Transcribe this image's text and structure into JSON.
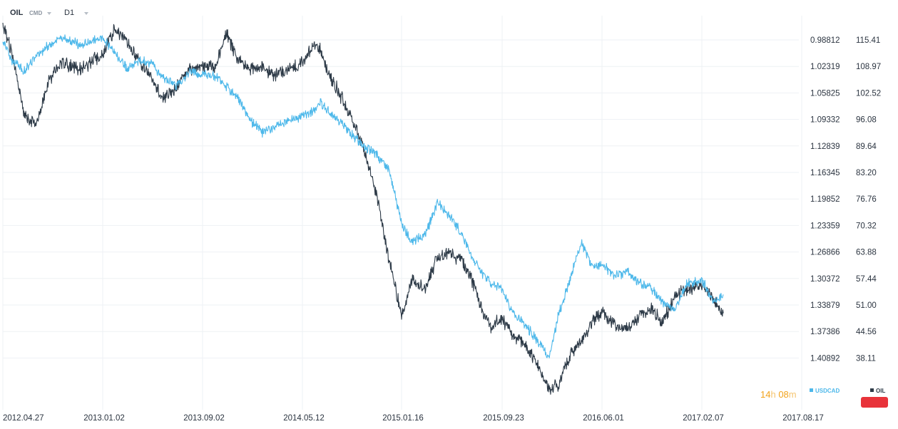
{
  "header": {
    "symbol": "OIL",
    "symbol_type": "CMD",
    "timeframe": "D1"
  },
  "countdown": {
    "hours": "14",
    "hours_unit": "h",
    "minutes": "08",
    "minutes_unit": "m"
  },
  "colors": {
    "oil": "#2d3a47",
    "usdcad": "#4db8ea",
    "grid": "#eceff2",
    "countdown": "#f2a31c",
    "flag": "#e8333a"
  },
  "chart_data": {
    "type": "line",
    "x_ticks": [
      "2012.04.27",
      "2013.01.02",
      "2013.09.02",
      "2014.05.12",
      "2015.01.16",
      "2015.09.23",
      "2016.06.01",
      "2017.02.07",
      "2017.08.17"
    ],
    "y_left_ticks": [
      "0.98812",
      "1.02319",
      "1.05825",
      "1.09332",
      "1.12839",
      "1.16345",
      "1.19852",
      "1.23359",
      "1.26866",
      "1.30372",
      "1.33879",
      "1.37386",
      "1.40892"
    ],
    "y_left_scale": "inverted",
    "y_right_ticks": [
      "115.41",
      "108.97",
      "102.52",
      "96.08",
      "89.64",
      "83.20",
      "76.76",
      "70.32",
      "63.88",
      "57.44",
      "51.00",
      "44.56",
      "38.11"
    ],
    "grid": true,
    "legend": [
      "USDCAD",
      "OIL"
    ],
    "series": [
      {
        "name": "OIL",
        "axis": "right",
        "x": [
          "2012.04.27",
          "2012.05.20",
          "2012.06.20",
          "2012.07.20",
          "2012.08.20",
          "2012.09.15",
          "2012.10.15",
          "2012.11.15",
          "2013.01.02",
          "2013.02.01",
          "2013.03.01",
          "2013.04.01",
          "2013.05.01",
          "2013.06.01",
          "2013.07.01",
          "2013.08.01",
          "2013.09.02",
          "2013.10.01",
          "2013.11.01",
          "2013.12.01",
          "2014.01.01",
          "2014.02.01",
          "2014.03.01",
          "2014.04.01",
          "2014.05.12",
          "2014.06.10",
          "2014.06.25",
          "2014.07.20",
          "2014.08.15",
          "2014.09.15",
          "2014.10.15",
          "2014.11.15",
          "2014.12.15",
          "2015.01.16",
          "2015.02.10",
          "2015.03.16",
          "2015.04.15",
          "2015.05.15",
          "2015.06.15",
          "2015.07.15",
          "2015.08.10",
          "2015.08.25",
          "2015.09.23",
          "2015.10.20",
          "2015.11.20",
          "2015.12.20",
          "2016.01.20",
          "2016.02.11",
          "2016.03.10",
          "2016.04.10",
          "2016.05.10",
          "2016.06.01",
          "2016.07.05",
          "2016.08.03",
          "2016.09.01",
          "2016.10.01",
          "2016.11.01",
          "2016.12.01",
          "2017.01.01",
          "2017.02.07",
          "2017.03.01",
          "2017.03.20"
        ],
        "values": [
          119.5,
          112.0,
          97.0,
          95.0,
          105.0,
          110.0,
          109.0,
          108.5,
          112.0,
          118.0,
          115.0,
          110.0,
          106.0,
          101.0,
          104.0,
          108.5,
          109.0,
          108.5,
          117.0,
          110.5,
          108.0,
          109.0,
          107.0,
          108.0,
          110.0,
          114.0,
          113.0,
          106.5,
          102.0,
          96.0,
          88.0,
          78.0,
          62.0,
          48.5,
          57.0,
          55.0,
          62.5,
          63.5,
          62.0,
          56.0,
          48.5,
          46.0,
          47.5,
          43.5,
          41.5,
          36.5,
          30.5,
          31.5,
          38.5,
          42.0,
          47.5,
          49.5,
          46.0,
          45.0,
          48.0,
          50.0,
          47.0,
          53.0,
          55.0,
          56.0,
          52.0,
          49.0
        ]
      },
      {
        "name": "USDCAD",
        "axis": "left",
        "x": [
          "2012.04.27",
          "2012.05.20",
          "2012.06.20",
          "2012.07.20",
          "2012.08.20",
          "2012.09.15",
          "2012.10.15",
          "2012.11.15",
          "2013.01.02",
          "2013.02.01",
          "2013.03.01",
          "2013.04.01",
          "2013.05.01",
          "2013.06.01",
          "2013.07.01",
          "2013.08.01",
          "2013.09.02",
          "2013.10.01",
          "2013.11.01",
          "2013.12.01",
          "2014.01.01",
          "2014.02.01",
          "2014.03.01",
          "2014.04.01",
          "2014.05.12",
          "2014.06.10",
          "2014.06.25",
          "2014.07.20",
          "2014.08.15",
          "2014.09.15",
          "2014.10.15",
          "2014.11.15",
          "2014.12.15",
          "2015.01.16",
          "2015.02.10",
          "2015.03.16",
          "2015.04.15",
          "2015.05.15",
          "2015.06.15",
          "2015.07.15",
          "2015.08.10",
          "2015.08.25",
          "2015.09.23",
          "2015.10.20",
          "2015.11.20",
          "2015.12.20",
          "2016.01.20",
          "2016.02.11",
          "2016.03.10",
          "2016.04.10",
          "2016.05.10",
          "2016.06.01",
          "2016.07.05",
          "2016.08.03",
          "2016.09.01",
          "2016.10.01",
          "2016.11.01",
          "2016.12.01",
          "2017.01.01",
          "2017.02.07",
          "2017.03.01",
          "2017.03.20"
        ],
        "values": [
          0.988,
          1.015,
          1.03,
          1.01,
          0.995,
          0.985,
          0.99,
          0.995,
          0.985,
          1.005,
          1.025,
          1.015,
          1.02,
          1.04,
          1.05,
          1.03,
          1.035,
          1.035,
          1.05,
          1.065,
          1.095,
          1.11,
          1.105,
          1.095,
          1.09,
          1.08,
          1.07,
          1.085,
          1.095,
          1.115,
          1.13,
          1.14,
          1.16,
          1.23,
          1.255,
          1.245,
          1.205,
          1.22,
          1.245,
          1.28,
          1.3,
          1.31,
          1.32,
          1.35,
          1.365,
          1.385,
          1.41,
          1.355,
          1.31,
          1.255,
          1.29,
          1.285,
          1.3,
          1.295,
          1.31,
          1.315,
          1.335,
          1.345,
          1.31,
          1.305,
          1.335,
          1.325
        ]
      }
    ]
  }
}
